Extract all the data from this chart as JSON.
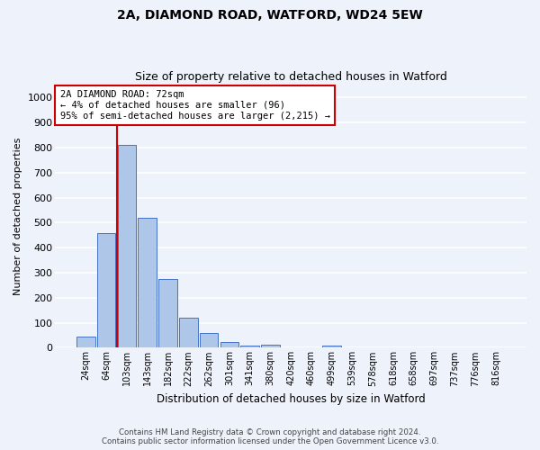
{
  "title_line1": "2A, DIAMOND ROAD, WATFORD, WD24 5EW",
  "title_line2": "Size of property relative to detached houses in Watford",
  "xlabel": "Distribution of detached houses by size in Watford",
  "ylabel": "Number of detached properties",
  "categories": [
    "24sqm",
    "64sqm",
    "103sqm",
    "143sqm",
    "182sqm",
    "222sqm",
    "262sqm",
    "301sqm",
    "341sqm",
    "380sqm",
    "420sqm",
    "460sqm",
    "499sqm",
    "539sqm",
    "578sqm",
    "618sqm",
    "658sqm",
    "697sqm",
    "737sqm",
    "776sqm",
    "816sqm"
  ],
  "values": [
    46,
    460,
    810,
    520,
    275,
    120,
    60,
    22,
    8,
    12,
    0,
    0,
    8,
    0,
    0,
    0,
    0,
    0,
    0,
    0,
    0
  ],
  "bar_color": "#aec6e8",
  "bar_edge_color": "#4472c4",
  "marker_label": "2A DIAMOND ROAD: 72sqm",
  "marker_line1": "← 4% of detached houses are smaller (96)",
  "marker_line2": "95% of semi-detached houses are larger (2,215) →",
  "marker_color": "#cc0000",
  "annotation_box_color": "#cc0000",
  "ylim": [
    0,
    1050
  ],
  "yticks": [
    0,
    100,
    200,
    300,
    400,
    500,
    600,
    700,
    800,
    900,
    1000
  ],
  "footer_line1": "Contains HM Land Registry data © Crown copyright and database right 2024.",
  "footer_line2": "Contains public sector information licensed under the Open Government Licence v3.0.",
  "background_color": "#eef2fb",
  "grid_color": "#ffffff"
}
